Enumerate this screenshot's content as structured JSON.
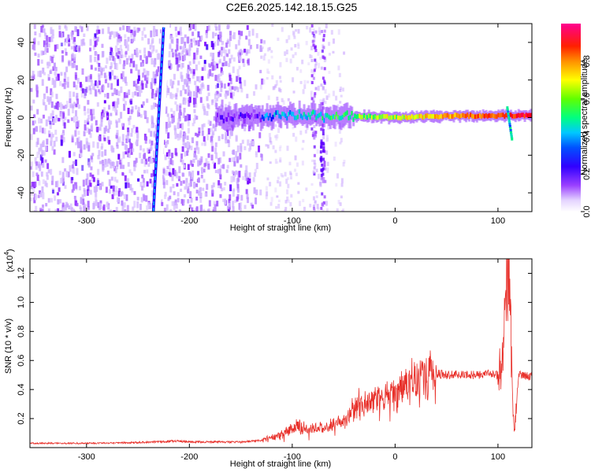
{
  "title": "C2E6.2025.142.18.15.G25",
  "chart_data": [
    {
      "type": "heatmap",
      "title": "C2E6.2025.142.18.15.G25",
      "xlabel": "Height of straight line (km)",
      "ylabel": "Frequency (Hz)",
      "xlim": [
        -355,
        133
      ],
      "ylim": [
        -50,
        50
      ],
      "xticks": [
        -300,
        -200,
        -100,
        0,
        100
      ],
      "yticks": [
        -40,
        -20,
        0,
        20,
        40
      ],
      "colorbar": {
        "label": "Normalized spectral amplitude",
        "range": [
          0,
          1
        ],
        "ticks": [
          "0.0",
          "0.2",
          "0.4",
          "0.6",
          "0.8"
        ],
        "colors": [
          "#ffffff",
          "#c9a7ff",
          "#7a00ff",
          "#0000ff",
          "#00c8ff",
          "#00ff60",
          "#ffff00",
          "#ff8000",
          "#ff0000",
          "#ff0090"
        ]
      },
      "features": {
        "noise_region_km": [
          -355,
          -130
        ],
        "steep_line": {
          "x": [
            -235,
            -225
          ],
          "y": [
            -50,
            48
          ]
        },
        "carrier_line": {
          "x": [
            -130,
            -90,
            -70,
            -50,
            0,
            50,
            105,
            133
          ],
          "y": [
            0,
            2,
            0,
            1,
            0,
            1,
            1,
            1
          ]
        },
        "dispersed_traces_km": [
          -80,
          -71
        ]
      }
    },
    {
      "type": "line",
      "xlabel": "Height of straight line (km)",
      "ylabel": "SNR (10 * v/v)",
      "scale_label": "(x10",
      "scale_exp": "4",
      "xlim": [
        -355,
        133
      ],
      "ylim": [
        0,
        13000
      ],
      "xticks": [
        -300,
        -200,
        -100,
        0,
        100
      ],
      "yticks": [
        "0.2",
        "0.4",
        "0.6",
        "0.8",
        "1.0",
        "1.2"
      ],
      "ytick_values": [
        2000,
        4000,
        6000,
        8000,
        10000,
        12000
      ],
      "color": "#e8302a",
      "series": [
        {
          "x": [
            -355,
            -300,
            -250,
            -215,
            -200,
            -150,
            -130,
            -110,
            -95,
            -80,
            -65,
            -50,
            -40,
            -30,
            -20,
            -10,
            0,
            10,
            20,
            30,
            40,
            50,
            60,
            70,
            80,
            90,
            100,
            105,
            108,
            110,
            112,
            114,
            116,
            120,
            133
          ],
          "y": [
            300,
            300,
            350,
            450,
            400,
            380,
            500,
            900,
            1500,
            1300,
            1500,
            1900,
            2500,
            2900,
            3200,
            3500,
            3800,
            4300,
            4700,
            5000,
            5100,
            5000,
            5000,
            5000,
            5000,
            5100,
            5000,
            5800,
            11000,
            13000,
            9000,
            4000,
            1000,
            5000,
            4900
          ]
        }
      ]
    }
  ]
}
